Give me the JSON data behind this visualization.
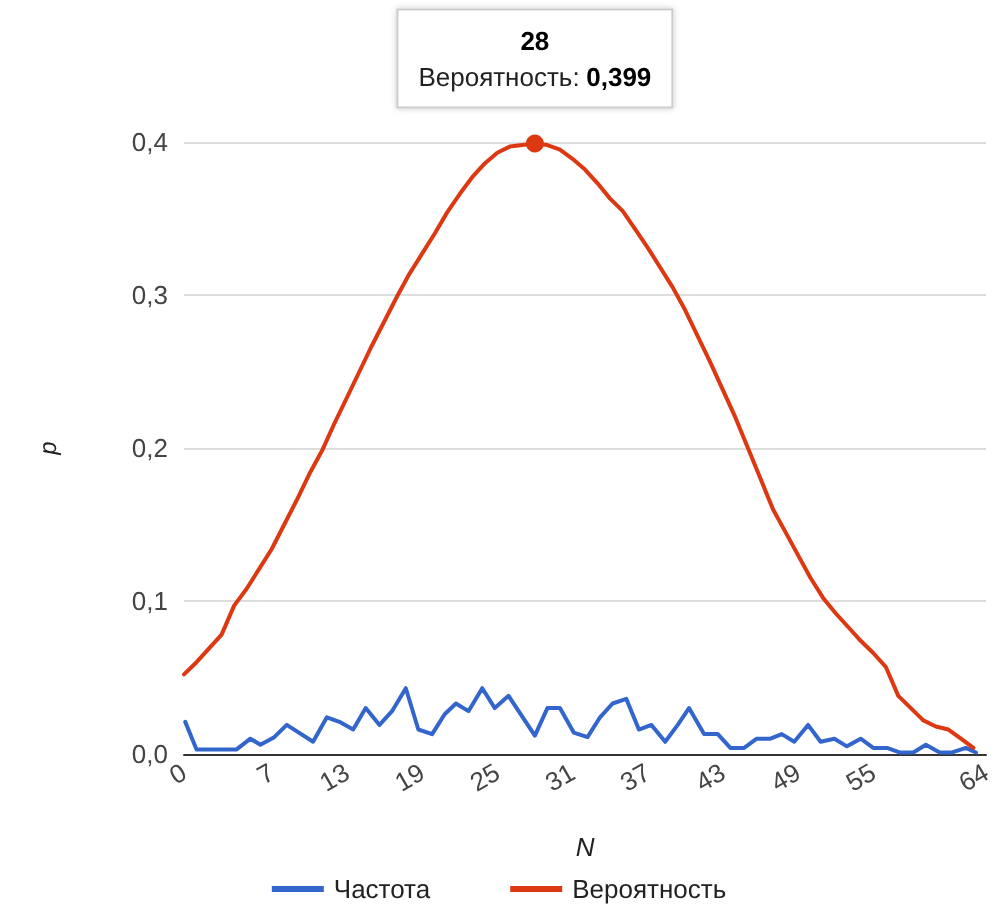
{
  "chart_data": {
    "type": "line",
    "xlabel": "N",
    "ylabel": "p",
    "xlim": [
      0,
      64
    ],
    "xticks": [
      0,
      7,
      13,
      19,
      25,
      31,
      37,
      43,
      49,
      55,
      64
    ],
    "ylim": [
      0,
      0.4
    ],
    "yticks": [
      {
        "value": 0,
        "label": "0,0"
      },
      {
        "value": 0.1,
        "label": "0,1"
      },
      {
        "value": 0.2,
        "label": "0,2"
      },
      {
        "value": 0.3,
        "label": "0,3"
      },
      {
        "value": 0.4,
        "label": "0,4"
      }
    ],
    "grid": "y",
    "legend": "bottom",
    "marker": "none",
    "line_style": "solid",
    "annotations": [
      {
        "text": "28\nВероятность: 0,399",
        "x": 28,
        "y": 0.399
      }
    ],
    "series": [
      {
        "name": "Частота",
        "color": "#3366cc",
        "x": [
          0.1,
          1.0,
          4.2,
          5.3,
          6.1,
          7.2,
          8.2,
          10.3,
          11.4,
          12.4,
          13.5,
          14.5,
          15.6,
          16.6,
          17.7,
          18.7,
          19.8,
          20.8,
          21.7,
          22.7,
          23.8,
          24.8,
          25.9,
          28.0,
          29.0,
          30.0,
          31.1,
          32.2,
          33.2,
          34.2,
          35.3,
          36.3,
          37.3,
          38.4,
          39.4,
          40.3,
          41.5,
          42.6,
          43.6,
          44.7,
          45.7,
          46.8,
          47.7,
          48.7,
          49.8,
          50.8,
          51.9,
          52.9,
          54.0,
          55.0,
          56.1,
          57.1,
          58.2,
          59.2,
          60.3,
          61.3,
          62.4,
          63.2
        ],
        "values": [
          0.021,
          0.003,
          0.003,
          0.01,
          0.006,
          0.011,
          0.019,
          0.008,
          0.024,
          0.021,
          0.016,
          0.03,
          0.019,
          0.028,
          0.043,
          0.016,
          0.013,
          0.026,
          0.033,
          0.028,
          0.043,
          0.03,
          0.038,
          0.012,
          0.03,
          0.03,
          0.014,
          0.011,
          0.024,
          0.033,
          0.036,
          0.016,
          0.019,
          0.008,
          0.019,
          0.03,
          0.013,
          0.013,
          0.004,
          0.004,
          0.01,
          0.01,
          0.013,
          0.008,
          0.019,
          0.008,
          0.01,
          0.005,
          0.01,
          0.004,
          0.004,
          0.001,
          0.001,
          0.006,
          0.001,
          0.001,
          0.004,
          0.001
        ]
      },
      {
        "name": "Вероятность",
        "color": "#dc3912",
        "x": [
          0,
          1,
          2,
          3,
          4,
          5,
          6,
          7,
          8,
          9,
          10,
          11,
          12,
          13,
          14,
          15,
          16,
          17,
          18,
          19,
          20,
          21,
          22,
          23,
          24,
          25,
          26,
          27,
          28,
          29,
          30,
          31,
          32,
          33,
          34,
          35,
          36,
          37,
          38,
          39,
          40,
          41,
          42,
          43,
          44,
          45,
          46,
          47,
          48,
          49,
          50,
          51,
          52,
          53,
          54,
          55,
          56,
          57,
          58,
          59,
          60,
          61,
          62,
          63
        ],
        "values": [
          0.052,
          0.06,
          0.069,
          0.078,
          0.097,
          0.108,
          0.121,
          0.134,
          0.15,
          0.166,
          0.183,
          0.198,
          0.216,
          0.233,
          0.25,
          0.267,
          0.283,
          0.299,
          0.314,
          0.327,
          0.34,
          0.354,
          0.366,
          0.377,
          0.386,
          0.393,
          0.397,
          0.398,
          0.399,
          0.398,
          0.395,
          0.389,
          0.382,
          0.373,
          0.363,
          0.355,
          0.343,
          0.331,
          0.318,
          0.305,
          0.29,
          0.273,
          0.256,
          0.238,
          0.22,
          0.2,
          0.18,
          0.16,
          0.145,
          0.13,
          0.115,
          0.102,
          0.092,
          0.083,
          0.074,
          0.066,
          0.057,
          0.038,
          0.03,
          0.022,
          0.018,
          0.016,
          0.01,
          0.004
        ]
      }
    ]
  }
}
